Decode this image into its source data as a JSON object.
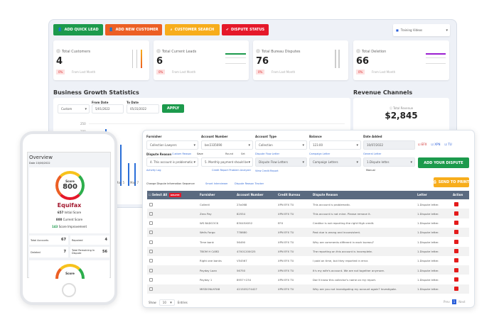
{
  "toolbar": {
    "add_quick_lead": "ADD QUICK LEAD",
    "add_new_customer": "ADD NEW CUSTOMER",
    "customer_search": "CUSTOMER SEARCH",
    "dispute_status": "DISPUTE STATUS",
    "training_videos": "Training Videos"
  },
  "stats": [
    {
      "title": "Total Customers",
      "value": "4",
      "change": "0%",
      "note": "From Last Month"
    },
    {
      "title": "Total Current Leads",
      "value": "6",
      "change": "0%",
      "note": "From Last Month"
    },
    {
      "title": "Total Bureau Disputes",
      "value": "76",
      "change": "0%",
      "note": "From Last Month"
    },
    {
      "title": "Total Deletion",
      "value": "66",
      "change": "0%",
      "note": "From Last Month"
    }
  ],
  "growth": {
    "title": "Business Growth Statistics",
    "range": "Custom",
    "from_label": "From Date",
    "from": "5/01/2022",
    "to_label": "To Date",
    "to": "05/31/2022",
    "apply": "APPLY"
  },
  "chart_data": {
    "type": "bar",
    "categories": [
      "May 5",
      "May 7"
    ],
    "yticks": [
      "200",
      "250"
    ]
  },
  "revenue": {
    "title": "Revenue Channels",
    "label": "Total Revenue",
    "value": "$2,845"
  },
  "form": {
    "furnisher_label": "Furnisher",
    "furnisher": "Collection Lawyers",
    "account_label": "Account Number",
    "account": "ber2335690",
    "type_label": "Account Type",
    "type": "Collection",
    "balance_label": "Balance",
    "balance": "123.00",
    "date_label": "Date Added",
    "date": "10/07/2022",
    "efx": "EFX",
    "xpn": "XPN",
    "tu": "TU",
    "dispute_reason": "Dispute Reason",
    "custom_reason": "Custom Reason",
    "save": "Save",
    "round": "Round",
    "set": "Set",
    "flow_letter": "Dispute Flow Letter",
    "campaign_letter": "Campaign Letter",
    "general_letter": "General Letter",
    "reason1": "4. This account is problematic.",
    "reason2": "5. Monthly payment should be r",
    "flow_value": "Dispute Flow Letters",
    "campaign_value": "Campaign Letters",
    "general_value": "1.Dispute letter.",
    "add_dispute": "ADD YOUR DISPUTE",
    "activity_log": "Activity Log",
    "analyzer": "Credit Report Problem Analyzer",
    "view_report": "View Credit Report",
    "manual": "Manual",
    "change_seq": "Change Dispute Information Sequence",
    "smart": "Smart Interviewer",
    "tracker": "Dispute Reason Tracker",
    "send_print": "SEND TO PRINT"
  },
  "table": {
    "select_all": "Select All",
    "delete": "DELETE",
    "headers": [
      "Furnisher",
      "Account Number",
      "Credit Bureau",
      "Dispute Reason",
      "Letter",
      "Action"
    ],
    "rows": [
      [
        "Collectl",
        "23x068",
        "XPN EFX TU",
        "This account is problematic.",
        "1.Dispute letter."
      ],
      [
        "Zero Pay",
        "82554",
        "XPN EFX TU",
        "This account is not mine. Please remove it.",
        "1.Dispute letter."
      ],
      [
        "WS BADCOCK",
        "83045XX52",
        "EFX",
        "Creditor is not reporting the right High credit.",
        "1.Dispute letter."
      ],
      [
        "Wells Fargo",
        "778680",
        "XPN EFX TU",
        "Past due is wrong and inconsistent.",
        "1.Dispute letter."
      ],
      [
        "Time bank",
        "56490",
        "XPN EFX TU",
        "Why are comments different in each bureau?",
        "1.Dispute letter."
      ],
      [
        "TBOM H CARD",
        "47001200025",
        "XPN EFX TU",
        "The reporting on this account is incomplete.",
        "1.Dispute letter."
      ],
      [
        "Right one banks",
        "V54567",
        "XPN EFX TU",
        "I paid on time, but they reported in error.",
        "1.Dispute letter."
      ],
      [
        "Payday Loan",
        "56750",
        "XPN EFX TU",
        "It's my wife's account. We are not together anymore.",
        "1.Dispute letter."
      ],
      [
        "Payday 1",
        "8957+234",
        "XPN EFX TU",
        "Don't know this collector's name on my report.",
        "1.Dispute letter."
      ],
      [
        "MISSIONLNTAB",
        "42150527442?",
        "XPN EFX TU",
        "Why are you not investigating my account again? Investigate.",
        "1.Dispute letter."
      ]
    ],
    "show": "Show",
    "entries_count": "10",
    "entries": "Entries",
    "prev": "Prev",
    "page": "1",
    "next": "Next"
  },
  "phone": {
    "title": "Overview",
    "date": "Date 10/06/2022",
    "score_label": "Score",
    "score": "800",
    "bureau": "Equifax",
    "initial": "657",
    "initial_label": "Initial Score",
    "current": "800",
    "current_label": "Current Score",
    "improve": "143",
    "improve_label": "Score Improvement",
    "total_accounts_label": "Total Accounts",
    "total_accounts": "67",
    "repaired_label": "Repaired",
    "repaired": "4",
    "deleted_label": "Deleted",
    "deleted": "7",
    "remaining_label": "Total Remaining In Dispute",
    "remaining": "56"
  }
}
